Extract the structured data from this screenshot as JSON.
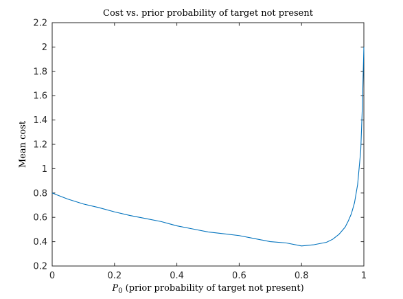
{
  "chart_data": {
    "type": "line",
    "title": "Cost vs. prior probability of target not present",
    "xlabel_symbol": "P",
    "xlabel_subscript": "0",
    "xlabel_rest": " (prior probability of target not present)",
    "ylabel": "Mean cost",
    "xlim": [
      0,
      1
    ],
    "ylim": [
      0.2,
      2.2
    ],
    "xticks": [
      0,
      0.2,
      0.4,
      0.6,
      0.8,
      1
    ],
    "xtick_labels": [
      "0",
      "0.2",
      "0.4",
      "0.6",
      "0.8",
      "1"
    ],
    "yticks": [
      0.2,
      0.4,
      0.6,
      0.8,
      1,
      1.2,
      1.4,
      1.6,
      1.8,
      2,
      2.2
    ],
    "ytick_labels": [
      "0.2",
      "0.4",
      "0.6",
      "0.8",
      "1",
      "1.2",
      "1.4",
      "1.6",
      "1.8",
      "2",
      "2.2"
    ],
    "grid": false,
    "series": [
      {
        "color": "#0072bd",
        "x": [
          0,
          0.02,
          0.05,
          0.1,
          0.15,
          0.2,
          0.25,
          0.3,
          0.35,
          0.4,
          0.45,
          0.5,
          0.55,
          0.6,
          0.65,
          0.7,
          0.75,
          0.8,
          0.82,
          0.84,
          0.86,
          0.88,
          0.9,
          0.92,
          0.94,
          0.95,
          0.96,
          0.97,
          0.98,
          0.99,
          0.995,
          1
        ],
        "y": [
          0.8,
          0.78,
          0.75,
          0.71,
          0.68,
          0.645,
          0.615,
          0.59,
          0.565,
          0.53,
          0.505,
          0.48,
          0.465,
          0.45,
          0.425,
          0.4,
          0.39,
          0.365,
          0.37,
          0.375,
          0.385,
          0.395,
          0.42,
          0.46,
          0.52,
          0.57,
          0.63,
          0.72,
          0.87,
          1.15,
          1.5,
          2.0
        ]
      }
    ]
  }
}
